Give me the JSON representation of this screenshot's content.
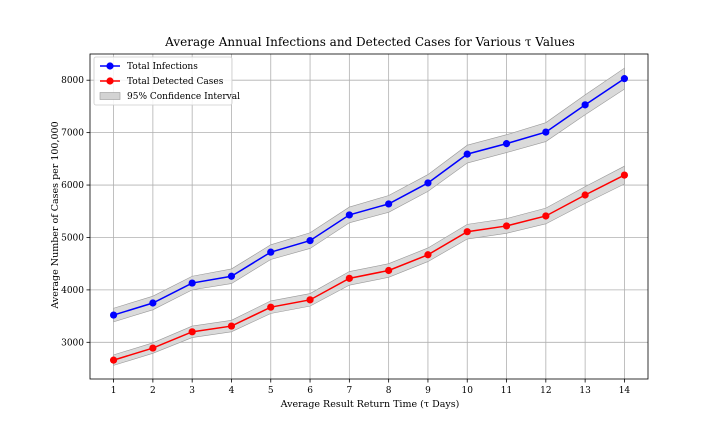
{
  "chart_data": {
    "type": "line",
    "title": "Average Annual Infections and Detected Cases for Various τ Values",
    "xlabel": "Average Result Return Time (τ Days)",
    "ylabel": "Average Number of Cases per 100,000",
    "x": [
      1,
      2,
      3,
      4,
      5,
      6,
      7,
      8,
      9,
      10,
      11,
      12,
      13,
      14
    ],
    "xlim": [
      0.4,
      14.6
    ],
    "ylim": [
      2300,
      8500
    ],
    "xticks": [
      1,
      2,
      3,
      4,
      5,
      6,
      7,
      8,
      9,
      10,
      11,
      12,
      13,
      14
    ],
    "yticks": [
      3000,
      4000,
      5000,
      6000,
      7000,
      8000
    ],
    "grid": true,
    "legend_position": "top-left",
    "series": [
      {
        "name": "Total Infections",
        "color": "#0000ff",
        "values": [
          3520,
          3750,
          4130,
          4260,
          4720,
          4940,
          5430,
          5640,
          6040,
          6590,
          6790,
          7010,
          7530,
          8030
        ],
        "ci_halfwidth": [
          130,
          130,
          130,
          140,
          140,
          150,
          150,
          160,
          160,
          170,
          170,
          180,
          190,
          200
        ]
      },
      {
        "name": "Total Detected Cases",
        "color": "#ff0000",
        "values": [
          2660,
          2890,
          3200,
          3310,
          3670,
          3810,
          4220,
          4370,
          4670,
          5110,
          5220,
          5410,
          5810,
          6190
        ],
        "ci_halfwidth": [
          100,
          100,
          110,
          110,
          120,
          120,
          130,
          130,
          130,
          140,
          140,
          150,
          160,
          170
        ]
      }
    ],
    "band": {
      "name": "95% Confidence Interval",
      "color": "#d3d3d3"
    }
  }
}
